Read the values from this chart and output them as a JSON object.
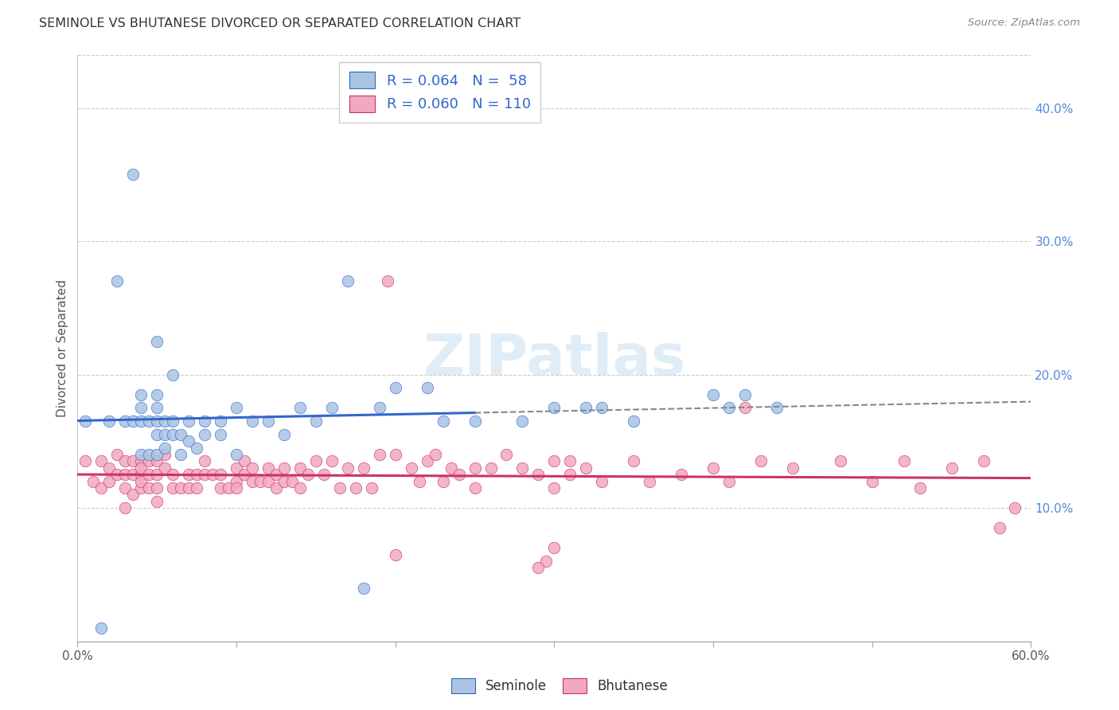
{
  "title": "SEMINOLE VS BHUTANESE DIVORCED OR SEPARATED CORRELATION CHART",
  "source": "Source: ZipAtlas.com",
  "ylabel": "Divorced or Separated",
  "legend_seminole": "Seminole",
  "legend_bhutanese": "Bhutanese",
  "r_seminole": "0.064",
  "n_seminole": "58",
  "r_bhutanese": "0.060",
  "n_bhutanese": "110",
  "xlim": [
    0.0,
    0.6
  ],
  "ylim": [
    0.0,
    0.44
  ],
  "xtick_values": [
    0.0,
    0.1,
    0.2,
    0.3,
    0.4,
    0.5,
    0.6
  ],
  "ytick_right_values": [
    0.1,
    0.2,
    0.3,
    0.4
  ],
  "ytick_right_labels": [
    "10.0%",
    "20.0%",
    "30.0%",
    "40.0%"
  ],
  "color_seminole": "#aac4e2",
  "color_bhutanese": "#f2a8c0",
  "line_color_seminole": "#3366cc",
  "line_color_bhutanese": "#cc3366",
  "watermark_text": "ZIPatlas",
  "seminole_x": [
    0.005,
    0.015,
    0.02,
    0.025,
    0.03,
    0.035,
    0.035,
    0.04,
    0.04,
    0.04,
    0.04,
    0.045,
    0.045,
    0.05,
    0.05,
    0.05,
    0.05,
    0.05,
    0.05,
    0.055,
    0.055,
    0.055,
    0.06,
    0.06,
    0.06,
    0.065,
    0.065,
    0.07,
    0.07,
    0.075,
    0.08,
    0.08,
    0.09,
    0.09,
    0.1,
    0.1,
    0.11,
    0.12,
    0.13,
    0.14,
    0.15,
    0.16,
    0.17,
    0.18,
    0.19,
    0.2,
    0.22,
    0.23,
    0.25,
    0.28,
    0.3,
    0.32,
    0.33,
    0.35,
    0.4,
    0.41,
    0.42,
    0.44
  ],
  "seminole_y": [
    0.165,
    0.01,
    0.165,
    0.27,
    0.165,
    0.165,
    0.35,
    0.14,
    0.165,
    0.175,
    0.185,
    0.14,
    0.165,
    0.14,
    0.155,
    0.165,
    0.175,
    0.185,
    0.225,
    0.145,
    0.155,
    0.165,
    0.155,
    0.165,
    0.2,
    0.14,
    0.155,
    0.15,
    0.165,
    0.145,
    0.155,
    0.165,
    0.155,
    0.165,
    0.14,
    0.175,
    0.165,
    0.165,
    0.155,
    0.175,
    0.165,
    0.175,
    0.27,
    0.04,
    0.175,
    0.19,
    0.19,
    0.165,
    0.165,
    0.165,
    0.175,
    0.175,
    0.175,
    0.165,
    0.185,
    0.175,
    0.185,
    0.175
  ],
  "bhutanese_x": [
    0.005,
    0.01,
    0.015,
    0.015,
    0.02,
    0.02,
    0.025,
    0.025,
    0.03,
    0.03,
    0.03,
    0.03,
    0.035,
    0.035,
    0.035,
    0.04,
    0.04,
    0.04,
    0.04,
    0.04,
    0.045,
    0.045,
    0.045,
    0.05,
    0.05,
    0.05,
    0.05,
    0.055,
    0.055,
    0.06,
    0.06,
    0.065,
    0.07,
    0.07,
    0.075,
    0.075,
    0.08,
    0.08,
    0.085,
    0.09,
    0.09,
    0.095,
    0.1,
    0.1,
    0.1,
    0.105,
    0.105,
    0.11,
    0.11,
    0.115,
    0.12,
    0.12,
    0.125,
    0.125,
    0.13,
    0.13,
    0.135,
    0.14,
    0.14,
    0.145,
    0.15,
    0.155,
    0.16,
    0.165,
    0.17,
    0.175,
    0.18,
    0.185,
    0.19,
    0.195,
    0.2,
    0.21,
    0.215,
    0.22,
    0.225,
    0.23,
    0.235,
    0.24,
    0.25,
    0.25,
    0.26,
    0.27,
    0.28,
    0.29,
    0.3,
    0.3,
    0.31,
    0.31,
    0.32,
    0.33,
    0.35,
    0.36,
    0.38,
    0.4,
    0.41,
    0.42,
    0.43,
    0.45,
    0.48,
    0.5,
    0.52,
    0.53,
    0.55,
    0.57,
    0.58,
    0.59,
    0.2,
    0.295,
    0.29,
    0.3
  ],
  "bhutanese_y": [
    0.135,
    0.12,
    0.115,
    0.135,
    0.13,
    0.12,
    0.14,
    0.125,
    0.115,
    0.125,
    0.135,
    0.1,
    0.11,
    0.125,
    0.135,
    0.115,
    0.125,
    0.135,
    0.12,
    0.13,
    0.115,
    0.125,
    0.135,
    0.115,
    0.125,
    0.135,
    0.105,
    0.13,
    0.14,
    0.115,
    0.125,
    0.115,
    0.115,
    0.125,
    0.115,
    0.125,
    0.125,
    0.135,
    0.125,
    0.115,
    0.125,
    0.115,
    0.12,
    0.13,
    0.115,
    0.125,
    0.135,
    0.12,
    0.13,
    0.12,
    0.12,
    0.13,
    0.115,
    0.125,
    0.12,
    0.13,
    0.12,
    0.13,
    0.115,
    0.125,
    0.135,
    0.125,
    0.135,
    0.115,
    0.13,
    0.115,
    0.13,
    0.115,
    0.14,
    0.27,
    0.14,
    0.13,
    0.12,
    0.135,
    0.14,
    0.12,
    0.13,
    0.125,
    0.13,
    0.115,
    0.13,
    0.14,
    0.13,
    0.125,
    0.135,
    0.115,
    0.135,
    0.125,
    0.13,
    0.12,
    0.135,
    0.12,
    0.125,
    0.13,
    0.12,
    0.175,
    0.135,
    0.13,
    0.135,
    0.12,
    0.135,
    0.115,
    0.13,
    0.135,
    0.085,
    0.1,
    0.065,
    0.06,
    0.055,
    0.07
  ]
}
